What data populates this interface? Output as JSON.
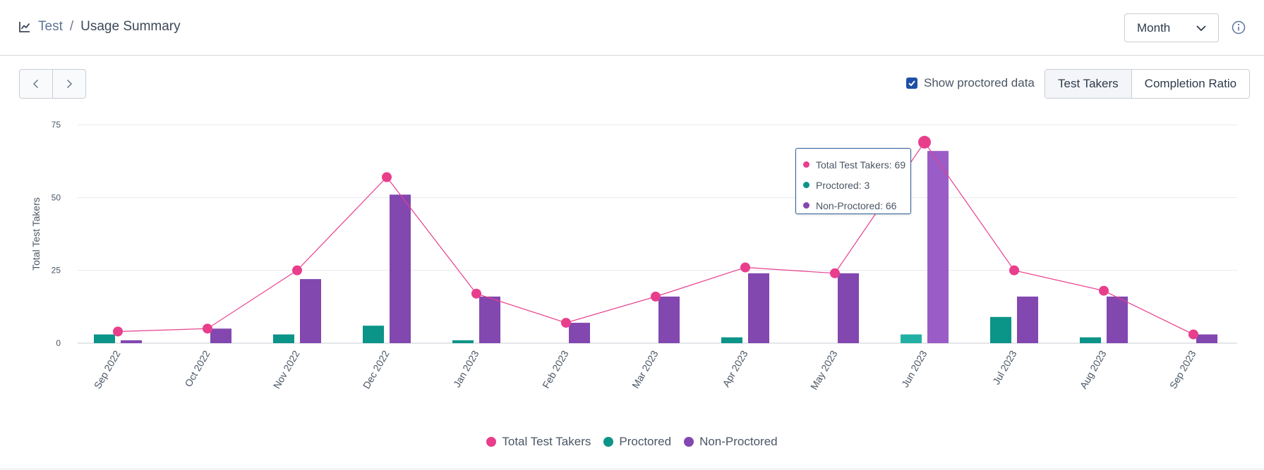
{
  "header": {
    "breadcrumb_root": "Test",
    "breadcrumb_separator": "/",
    "breadcrumb_current": "Usage Summary",
    "period_select": "Month"
  },
  "controls": {
    "show_proctored_label": "Show proctored data",
    "show_proctored_checked": true,
    "toggle_test_takers": "Test Takers",
    "toggle_completion_ratio": "Completion Ratio"
  },
  "colors": {
    "total": "#e83e8c",
    "proctored": "#0b9488",
    "non_proctored": "#8347b0",
    "non_proctored_hover": "#9a5cc6",
    "proctored_hover": "#22b0a4"
  },
  "tooltip": {
    "total": "Total Test Takers: 69",
    "proctored": "Proctored: 3",
    "non_proctored": "Non-Proctored: 66"
  },
  "chart_data": {
    "type": "bar",
    "title": "",
    "xlabel": "",
    "ylabel": "Total Test Takers",
    "ylim": [
      0,
      75
    ],
    "yticks": [
      0,
      25,
      50,
      75
    ],
    "grid": true,
    "legend_position": "bottom-center",
    "highlighted_category": "Jun 2023",
    "categories": [
      "Sep 2022",
      "Oct 2022",
      "Nov 2022",
      "Dec 2022",
      "Jan 2023",
      "Feb 2023",
      "Mar 2023",
      "Apr 2023",
      "May 2023",
      "Jun 2023",
      "Jul 2023",
      "Aug 2023",
      "Sep 2023"
    ],
    "series": [
      {
        "name": "Total Test Takers",
        "type": "line",
        "values": [
          4,
          5,
          25,
          57,
          17,
          7,
          16,
          26,
          24,
          69,
          25,
          18,
          3
        ]
      },
      {
        "name": "Proctored",
        "type": "bar",
        "values": [
          3,
          0,
          3,
          6,
          1,
          0,
          0,
          2,
          0,
          3,
          9,
          2,
          0
        ]
      },
      {
        "name": "Non-Proctored",
        "type": "bar",
        "values": [
          1,
          5,
          22,
          51,
          16,
          7,
          16,
          24,
          24,
          66,
          16,
          16,
          3
        ]
      }
    ]
  }
}
